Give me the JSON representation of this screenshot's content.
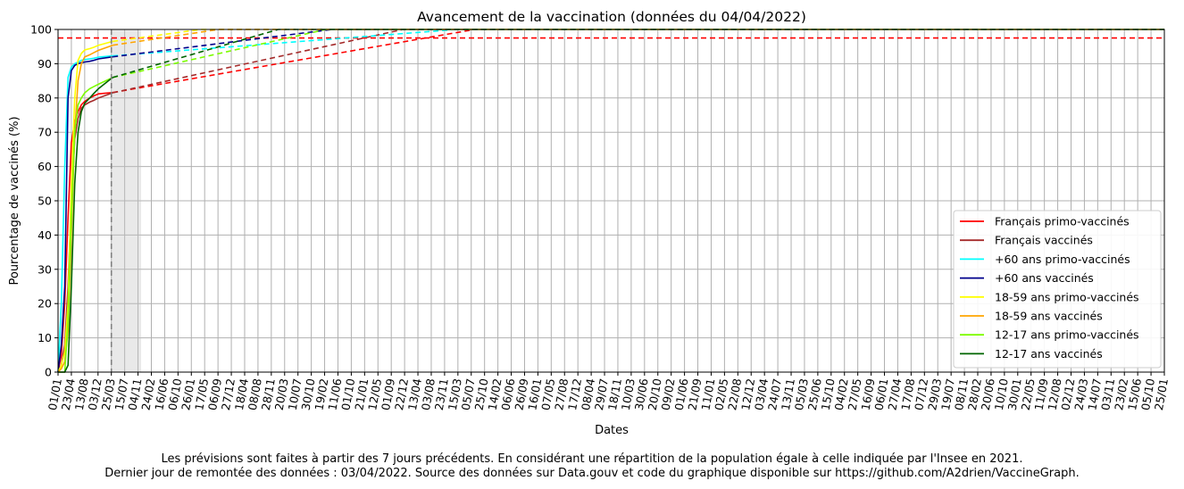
{
  "chart_data": {
    "type": "line",
    "title": "Avancement de la vaccination (données du 04/04/2022)",
    "xlabel": "Dates",
    "ylabel": "Pourcentage de vaccinés (%)",
    "ylim": [
      0,
      100
    ],
    "yticks": [
      0,
      10,
      20,
      30,
      40,
      50,
      60,
      70,
      80,
      90,
      100
    ],
    "grid": true,
    "legend_position": "lower-right",
    "x_tick_labels": [
      "01/01",
      "23/04",
      "13/08",
      "03/12",
      "25/03",
      "15/07",
      "04/11",
      "24/02",
      "16/06",
      "06/10",
      "26/01",
      "17/05",
      "06/09",
      "27/12",
      "18/04",
      "08/08",
      "28/11",
      "20/03",
      "10/07",
      "30/10",
      "19/02",
      "11/06",
      "01/10",
      "21/01",
      "12/05",
      "01/09",
      "22/12",
      "13/04",
      "03/08",
      "23/11",
      "15/03",
      "05/07",
      "25/10",
      "14/02",
      "06/06",
      "26/09",
      "16/01",
      "07/05",
      "27/08",
      "17/12",
      "08/04",
      "29/07",
      "18/11",
      "10/03",
      "30/06",
      "20/10",
      "09/02",
      "01/06",
      "21/09",
      "11/01",
      "02/05",
      "22/08",
      "12/12",
      "03/04",
      "24/07",
      "13/11",
      "05/03",
      "25/06",
      "15/10",
      "04/02",
      "27/05",
      "16/09",
      "06/01",
      "27/04",
      "17/08",
      "07/12",
      "29/03",
      "19/07",
      "08/11",
      "28/02",
      "20/06",
      "10/10",
      "30/01",
      "22/05",
      "11/09",
      "12/08",
      "02/12",
      "24/03",
      "14/07",
      "03/11",
      "23/02",
      "15/06",
      "05/10",
      "25/01"
    ],
    "x_tick_count_note": "one tick every 112 days from 01/01/2021",
    "today_marker": "25/03",
    "series": [
      {
        "name": "Français primo-vaccinés",
        "color": "#ff0000",
        "observed": [
          [
            0,
            0
          ],
          [
            28,
            5
          ],
          [
            56,
            20
          ],
          [
            84,
            45
          ],
          [
            112,
            67
          ],
          [
            140,
            73
          ],
          [
            168,
            76
          ],
          [
            196,
            78
          ],
          [
            224,
            79
          ],
          [
            266,
            80
          ],
          [
            300,
            80.6
          ],
          [
            340,
            81.2
          ],
          [
            459,
            81.6
          ]
        ],
        "forecast": [
          [
            459,
            81.6
          ],
          [
            3500,
            100
          ]
        ],
        "target": 97.5
      },
      {
        "name": "Français vaccinés",
        "color": "#a52a2a",
        "observed": [
          [
            0,
            0
          ],
          [
            28,
            2
          ],
          [
            56,
            8
          ],
          [
            84,
            25
          ],
          [
            112,
            50
          ],
          [
            140,
            68
          ],
          [
            168,
            74
          ],
          [
            196,
            77
          ],
          [
            224,
            78
          ],
          [
            266,
            78.8
          ],
          [
            300,
            79.3
          ],
          [
            340,
            80
          ],
          [
            459,
            81.5
          ]
        ],
        "forecast": [
          [
            459,
            81.5
          ],
          [
            2900,
            100
          ]
        ]
      },
      {
        "name": "+60 ans primo-vaccinés",
        "color": "#00ffff",
        "observed": [
          [
            0,
            0
          ],
          [
            28,
            20
          ],
          [
            56,
            60
          ],
          [
            84,
            86
          ],
          [
            112,
            89
          ],
          [
            140,
            90
          ],
          [
            168,
            90.5
          ],
          [
            196,
            91
          ],
          [
            224,
            91.2
          ],
          [
            266,
            91.4
          ],
          [
            300,
            91.6
          ],
          [
            340,
            91.9
          ],
          [
            459,
            92.3
          ]
        ],
        "forecast": [
          [
            459,
            92.3
          ],
          [
            3350,
            100
          ]
        ]
      },
      {
        "name": "+60 ans vaccinés",
        "color": "#00008b",
        "observed": [
          [
            0,
            0
          ],
          [
            28,
            8
          ],
          [
            56,
            25
          ],
          [
            84,
            80
          ],
          [
            112,
            88
          ],
          [
            140,
            89.5
          ],
          [
            168,
            90
          ],
          [
            196,
            90.3
          ],
          [
            224,
            90.5
          ],
          [
            266,
            90.7
          ],
          [
            300,
            91
          ],
          [
            340,
            91.4
          ],
          [
            459,
            92
          ]
        ],
        "forecast": [
          [
            459,
            92
          ],
          [
            2300,
            100
          ]
        ]
      },
      {
        "name": "18-59 ans primo-vaccinés",
        "color": "#ffff00",
        "observed": [
          [
            0,
            0
          ],
          [
            28,
            2
          ],
          [
            56,
            6
          ],
          [
            84,
            20
          ],
          [
            112,
            55
          ],
          [
            140,
            80
          ],
          [
            168,
            91
          ],
          [
            196,
            93
          ],
          [
            224,
            94
          ],
          [
            266,
            94.4
          ],
          [
            300,
            94.8
          ],
          [
            340,
            95.4
          ],
          [
            459,
            96.5
          ]
        ],
        "forecast": [
          [
            459,
            96.5
          ],
          [
            1200,
            100
          ]
        ]
      },
      {
        "name": "18-59 ans vaccinés",
        "color": "#ffa500",
        "observed": [
          [
            0,
            0
          ],
          [
            28,
            1
          ],
          [
            56,
            3
          ],
          [
            84,
            12
          ],
          [
            112,
            40
          ],
          [
            140,
            70
          ],
          [
            168,
            85
          ],
          [
            196,
            90
          ],
          [
            224,
            92
          ],
          [
            266,
            92.6
          ],
          [
            300,
            93.2
          ],
          [
            340,
            93.9
          ],
          [
            459,
            95.4
          ]
        ],
        "forecast": [
          [
            459,
            95.4
          ],
          [
            1350,
            100
          ]
        ]
      },
      {
        "name": "12-17 ans primo-vaccinés",
        "color": "#7cfc00",
        "observed": [
          [
            0,
            0
          ],
          [
            56,
            0
          ],
          [
            84,
            15
          ],
          [
            112,
            45
          ],
          [
            140,
            70
          ],
          [
            168,
            78
          ],
          [
            196,
            80
          ],
          [
            224,
            81.5
          ],
          [
            266,
            82.7
          ],
          [
            300,
            83.3
          ],
          [
            340,
            84
          ],
          [
            459,
            86
          ]
        ],
        "forecast": [
          [
            459,
            86
          ],
          [
            2250,
            100
          ]
        ]
      },
      {
        "name": "12-17 ans vaccinés",
        "color": "#006400",
        "observed": [
          [
            0,
            0
          ],
          [
            56,
            0
          ],
          [
            84,
            2
          ],
          [
            112,
            25
          ],
          [
            140,
            55
          ],
          [
            168,
            70
          ],
          [
            196,
            76
          ],
          [
            224,
            78.5
          ],
          [
            266,
            80
          ],
          [
            300,
            81.3
          ],
          [
            340,
            82.7
          ],
          [
            459,
            86
          ]
        ],
        "forecast": [
          [
            459,
            86
          ],
          [
            1850,
            100
          ]
        ]
      }
    ]
  },
  "footnote": {
    "line1": "Les prévisions sont faites à partir des 7 jours précédents. En considérant une répartition de la population égale à celle indiquée par l'Insee en 2021.",
    "line2": "Dernier jour de remontée des données : 03/04/2022. Source des données sur Data.gouv et code du graphique disponible sur https://github.com/A2drien/VaccineGraph."
  }
}
